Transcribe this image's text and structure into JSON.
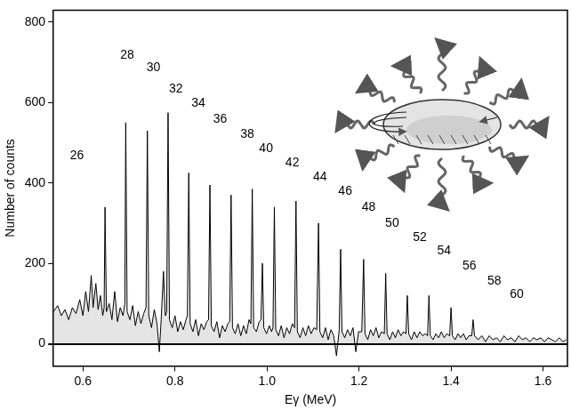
{
  "chart_data": {
    "type": "line",
    "x_label": "Eγ (MeV)",
    "y_label": "Number of counts",
    "color": "#000000",
    "marker": "none",
    "line_style": "solid",
    "grid": false,
    "xlim": [
      0.536,
      1.653
    ],
    "xticks": [
      0.6,
      0.8,
      {
        "value": 1,
        "label": "1.0"
      },
      1.2,
      1.4,
      1.6
    ],
    "ylim": [
      -55,
      830
    ],
    "yticks": [
      0,
      200,
      400,
      600,
      800
    ],
    "x": [
      0.536,
      0.545,
      0.553,
      0.561,
      0.569,
      0.577,
      0.585,
      0.593,
      0.6,
      0.606,
      0.612,
      0.618,
      0.622,
      0.628,
      0.633,
      0.638,
      0.643,
      0.646,
      0.648,
      0.651,
      0.657,
      0.663,
      0.669,
      0.675,
      0.681,
      0.687,
      0.691,
      0.693,
      0.696,
      0.702,
      0.708,
      0.714,
      0.72,
      0.726,
      0.732,
      0.737,
      0.74,
      0.743,
      0.749,
      0.755,
      0.761,
      0.766,
      0.77,
      0.775,
      0.779,
      0.782,
      0.785,
      0.788,
      0.794,
      0.8,
      0.806,
      0.812,
      0.818,
      0.824,
      0.827,
      0.83,
      0.833,
      0.839,
      0.845,
      0.851,
      0.857,
      0.863,
      0.869,
      0.873,
      0.876,
      0.879,
      0.885,
      0.891,
      0.897,
      0.903,
      0.909,
      0.915,
      0.919,
      0.922,
      0.925,
      0.931,
      0.937,
      0.943,
      0.949,
      0.955,
      0.961,
      0.965,
      0.968,
      0.971,
      0.977,
      0.983,
      0.987,
      0.99,
      0.993,
      0.999,
      1.005,
      1.01,
      1.013,
      1.016,
      1.019,
      1.025,
      1.031,
      1.037,
      1.043,
      1.049,
      1.055,
      1.06,
      1.063,
      1.066,
      1.072,
      1.078,
      1.084,
      1.09,
      1.096,
      1.102,
      1.108,
      1.112,
      1.115,
      1.121,
      1.127,
      1.133,
      1.139,
      1.145,
      1.151,
      1.157,
      1.16,
      1.163,
      1.169,
      1.175,
      1.181,
      1.187,
      1.193,
      1.199,
      1.206,
      1.21,
      1.213,
      1.219,
      1.225,
      1.231,
      1.237,
      1.243,
      1.249,
      1.255,
      1.258,
      1.261,
      1.267,
      1.273,
      1.279,
      1.285,
      1.291,
      1.297,
      1.302,
      1.305,
      1.308,
      1.314,
      1.32,
      1.326,
      1.332,
      1.338,
      1.344,
      1.349,
      1.352,
      1.355,
      1.361,
      1.367,
      1.373,
      1.379,
      1.385,
      1.391,
      1.397,
      1.4,
      1.403,
      1.409,
      1.415,
      1.421,
      1.427,
      1.433,
      1.439,
      1.445,
      1.448,
      1.451,
      1.459,
      1.467,
      1.475,
      1.483,
      1.491,
      1.499,
      1.507,
      1.515,
      1.523,
      1.531,
      1.539,
      1.547,
      1.555,
      1.563,
      1.571,
      1.579,
      1.587,
      1.595,
      1.603,
      1.611,
      1.619,
      1.627,
      1.635,
      1.643,
      1.65
    ],
    "values": [
      80,
      95,
      70,
      85,
      60,
      90,
      75,
      110,
      70,
      130,
      80,
      170,
      90,
      150,
      85,
      120,
      70,
      90,
      340,
      80,
      100,
      60,
      130,
      55,
      90,
      70,
      100,
      550,
      80,
      60,
      95,
      45,
      80,
      50,
      75,
      90,
      530,
      70,
      40,
      85,
      50,
      -20,
      60,
      180,
      70,
      80,
      575,
      60,
      40,
      70,
      30,
      55,
      35,
      60,
      70,
      425,
      50,
      30,
      60,
      20,
      50,
      35,
      55,
      60,
      395,
      45,
      30,
      55,
      15,
      45,
      30,
      50,
      55,
      370,
      40,
      25,
      50,
      20,
      45,
      25,
      60,
      50,
      385,
      40,
      30,
      55,
      60,
      200,
      40,
      25,
      45,
      30,
      40,
      340,
      35,
      20,
      45,
      15,
      40,
      25,
      50,
      40,
      355,
      30,
      15,
      40,
      20,
      45,
      25,
      40,
      35,
      300,
      30,
      15,
      40,
      10,
      35,
      20,
      -30,
      35,
      235,
      30,
      15,
      35,
      20,
      40,
      -20,
      30,
      30,
      210,
      25,
      10,
      35,
      20,
      40,
      15,
      30,
      25,
      175,
      25,
      10,
      30,
      15,
      35,
      20,
      30,
      25,
      120,
      25,
      10,
      30,
      15,
      30,
      20,
      25,
      20,
      120,
      20,
      10,
      25,
      15,
      30,
      15,
      25,
      20,
      90,
      20,
      10,
      25,
      15,
      25,
      10,
      20,
      20,
      60,
      20,
      10,
      20,
      5,
      20,
      10,
      15,
      5,
      20,
      10,
      15,
      5,
      20,
      10,
      15,
      5,
      15,
      10,
      15,
      5,
      15,
      10,
      5,
      15,
      5,
      10
    ],
    "annotations": [
      {
        "text": "26",
        "x": 0.587,
        "y": 467
      },
      {
        "text": "28",
        "x": 0.696,
        "y": 717
      },
      {
        "text": "30",
        "x": 0.753,
        "y": 686
      },
      {
        "text": "32",
        "x": 0.802,
        "y": 634
      },
      {
        "text": "34",
        "x": 0.851,
        "y": 599
      },
      {
        "text": "36",
        "x": 0.898,
        "y": 559
      },
      {
        "text": "38",
        "x": 0.957,
        "y": 520
      },
      {
        "text": "40",
        "x": 0.998,
        "y": 485
      },
      {
        "text": "42",
        "x": 1.055,
        "y": 450
      },
      {
        "text": "44",
        "x": 1.115,
        "y": 414
      },
      {
        "text": "46",
        "x": 1.17,
        "y": 379
      },
      {
        "text": "48",
        "x": 1.221,
        "y": 340
      },
      {
        "text": "50",
        "x": 1.272,
        "y": 300
      },
      {
        "text": "52",
        "x": 1.332,
        "y": 265
      },
      {
        "text": "54",
        "x": 1.385,
        "y": 230
      },
      {
        "text": "56",
        "x": 1.44,
        "y": 193
      },
      {
        "text": "58",
        "x": 1.494,
        "y": 156
      },
      {
        "text": "60",
        "x": 1.543,
        "y": 123
      }
    ]
  }
}
